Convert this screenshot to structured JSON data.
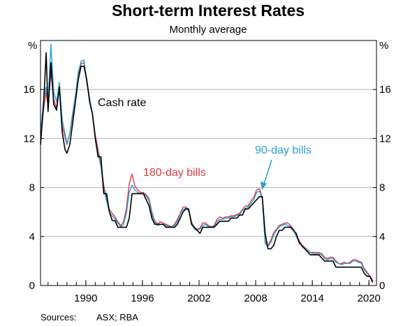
{
  "chart_data": {
    "type": "line",
    "title": "Short-term Interest Rates",
    "subtitle": "Monthly average",
    "y_unit": "%",
    "ylim": [
      0,
      20
    ],
    "xlim": [
      1985.2,
      2020.8
    ],
    "y_ticks": [
      0,
      4,
      8,
      12,
      16
    ],
    "x_ticks": [
      1990,
      1996,
      2002,
      2008,
      2014,
      2020
    ],
    "grid": "horizontal",
    "annotations": {
      "cash": "Cash rate",
      "bills180": "180-day bills",
      "bills90": "90-day bills"
    },
    "source_label": "Sources:",
    "source_text": "ASX; RBA",
    "series": [
      {
        "key": "bills180",
        "color": "#e03a3e",
        "x": [
          1985.2,
          1985.5,
          1985.8,
          1986.0,
          1986.3,
          1986.6,
          1986.9,
          1987.2,
          1987.5,
          1987.8,
          1988.0,
          1988.3,
          1988.6,
          1988.9,
          1989.2,
          1989.5,
          1989.8,
          1990.1,
          1990.4,
          1990.7,
          1991.0,
          1991.3,
          1991.6,
          1991.9,
          1992.2,
          1992.5,
          1992.8,
          1993.1,
          1993.4,
          1993.7,
          1994.0,
          1994.3,
          1994.6,
          1994.9,
          1995.2,
          1995.5,
          1995.8,
          1996.1,
          1996.4,
          1996.7,
          1997.0,
          1997.3,
          1997.6,
          1997.9,
          1998.2,
          1998.5,
          1998.8,
          1999.1,
          1999.4,
          1999.7,
          2000.0,
          2000.3,
          2000.6,
          2000.9,
          2001.2,
          2001.5,
          2001.8,
          2002.1,
          2002.4,
          2002.7,
          2003.0,
          2003.3,
          2003.6,
          2003.9,
          2004.2,
          2004.5,
          2004.8,
          2005.1,
          2005.4,
          2005.7,
          2006.0,
          2006.3,
          2006.6,
          2006.9,
          2007.2,
          2007.5,
          2007.8,
          2008.1,
          2008.4,
          2008.7,
          2009.0,
          2009.3,
          2009.6,
          2009.9,
          2010.2,
          2010.5,
          2010.8,
          2011.1,
          2011.4,
          2011.7,
          2012.0,
          2012.3,
          2012.6,
          2012.9,
          2013.2,
          2013.5,
          2013.8,
          2014.1,
          2014.4,
          2014.7,
          2015.0,
          2015.3,
          2015.6,
          2015.9,
          2016.2,
          2016.5,
          2016.8,
          2017.1,
          2017.4,
          2017.7,
          2018.0,
          2018.3,
          2018.6,
          2018.9,
          2019.2,
          2019.5,
          2019.8,
          2020.1,
          2020.4
        ],
        "values": [
          12.0,
          14.3,
          15.8,
          14.6,
          17.4,
          15.2,
          14.5,
          16.4,
          13.0,
          12.1,
          11.5,
          12.4,
          14.0,
          15.5,
          17.2,
          18.1,
          18.2,
          16.6,
          15.2,
          14.1,
          12.3,
          11.1,
          9.9,
          8.2,
          7.1,
          6.2,
          5.9,
          5.6,
          5.2,
          4.9,
          5.2,
          6.3,
          8.3,
          9.1,
          8.1,
          7.8,
          7.6,
          7.6,
          7.4,
          7.1,
          6.0,
          5.3,
          5.0,
          5.2,
          5.1,
          5.0,
          4.9,
          4.8,
          5.0,
          5.4,
          5.9,
          6.4,
          6.4,
          6.2,
          5.2,
          4.7,
          4.6,
          4.7,
          5.1,
          5.1,
          4.9,
          4.8,
          4.9,
          5.4,
          5.6,
          5.5,
          5.6,
          5.6,
          5.7,
          5.7,
          5.8,
          5.9,
          6.2,
          6.5,
          6.5,
          6.9,
          7.2,
          7.8,
          7.9,
          7.2,
          3.6,
          3.3,
          3.7,
          4.3,
          4.6,
          4.9,
          5.0,
          5.1,
          5.1,
          4.9,
          4.6,
          4.1,
          3.7,
          3.3,
          3.1,
          2.9,
          2.7,
          2.7,
          2.7,
          2.7,
          2.6,
          2.3,
          2.2,
          2.3,
          2.3,
          2.0,
          1.8,
          1.8,
          1.9,
          1.8,
          1.9,
          2.1,
          2.1,
          2.0,
          1.9,
          1.4,
          1.1,
          0.8,
          0.4
        ]
      },
      {
        "key": "bills90",
        "color": "#2a9fd6",
        "x": [
          1985.2,
          1985.5,
          1985.8,
          1986.0,
          1986.3,
          1986.6,
          1986.9,
          1987.2,
          1987.5,
          1987.8,
          1988.0,
          1988.3,
          1988.6,
          1988.9,
          1989.2,
          1989.5,
          1989.8,
          1990.1,
          1990.4,
          1990.7,
          1991.0,
          1991.3,
          1991.6,
          1991.9,
          1992.2,
          1992.5,
          1992.8,
          1993.1,
          1993.4,
          1993.7,
          1994.0,
          1994.3,
          1994.6,
          1994.9,
          1995.2,
          1995.5,
          1995.8,
          1996.1,
          1996.4,
          1996.7,
          1997.0,
          1997.3,
          1997.6,
          1997.9,
          1998.2,
          1998.5,
          1998.8,
          1999.1,
          1999.4,
          1999.7,
          2000.0,
          2000.3,
          2000.6,
          2000.9,
          2001.2,
          2001.5,
          2001.8,
          2002.1,
          2002.4,
          2002.7,
          2003.0,
          2003.3,
          2003.6,
          2003.9,
          2004.2,
          2004.5,
          2004.8,
          2005.1,
          2005.4,
          2005.7,
          2006.0,
          2006.3,
          2006.6,
          2006.9,
          2007.2,
          2007.5,
          2007.8,
          2008.1,
          2008.4,
          2008.7,
          2009.0,
          2009.3,
          2009.6,
          2009.9,
          2010.2,
          2010.5,
          2010.8,
          2011.1,
          2011.4,
          2011.7,
          2012.0,
          2012.3,
          2012.6,
          2012.9,
          2013.2,
          2013.5,
          2013.8,
          2014.1,
          2014.4,
          2014.7,
          2015.0,
          2015.3,
          2015.6,
          2015.9,
          2016.2,
          2016.5,
          2016.8,
          2017.1,
          2017.4,
          2017.7,
          2018.0,
          2018.3,
          2018.6,
          2018.9,
          2019.2,
          2019.5,
          2019.8,
          2020.1,
          2020.4
        ],
        "values": [
          12.5,
          15.0,
          16.2,
          15.0,
          19.7,
          15.8,
          15.0,
          16.6,
          13.5,
          12.4,
          11.6,
          12.4,
          13.8,
          15.5,
          17.4,
          18.3,
          18.4,
          16.8,
          15.3,
          14.0,
          12.0,
          10.8,
          9.7,
          7.9,
          6.9,
          6.0,
          5.7,
          5.4,
          5.1,
          4.8,
          5.0,
          5.9,
          7.6,
          8.2,
          7.8,
          7.6,
          7.5,
          7.5,
          7.3,
          6.9,
          5.8,
          5.2,
          4.9,
          5.0,
          5.0,
          4.9,
          4.8,
          4.8,
          4.9,
          5.2,
          5.8,
          6.2,
          6.3,
          6.1,
          5.0,
          4.6,
          4.5,
          4.6,
          4.9,
          5.0,
          4.8,
          4.8,
          4.8,
          5.2,
          5.4,
          5.4,
          5.5,
          5.5,
          5.6,
          5.6,
          5.7,
          5.8,
          6.1,
          6.3,
          6.4,
          6.7,
          7.0,
          7.6,
          7.7,
          7.1,
          3.4,
          3.2,
          3.5,
          4.1,
          4.5,
          4.8,
          4.9,
          5.0,
          4.9,
          4.8,
          4.5,
          4.0,
          3.6,
          3.2,
          3.0,
          2.9,
          2.7,
          2.6,
          2.6,
          2.6,
          2.5,
          2.2,
          2.1,
          2.2,
          2.2,
          1.9,
          1.8,
          1.7,
          1.8,
          1.8,
          1.8,
          2.0,
          2.0,
          1.9,
          1.8,
          1.3,
          1.0,
          0.7,
          0.3
        ]
      },
      {
        "key": "cash",
        "color": "#000000",
        "x": [
          1985.2,
          1985.5,
          1985.8,
          1986.0,
          1986.3,
          1986.6,
          1986.9,
          1987.2,
          1987.5,
          1987.8,
          1988.0,
          1988.3,
          1988.6,
          1988.9,
          1989.2,
          1989.5,
          1989.8,
          1990.1,
          1990.4,
          1990.7,
          1991.0,
          1991.3,
          1991.6,
          1991.9,
          1992.2,
          1992.5,
          1992.8,
          1993.1,
          1993.4,
          1993.7,
          1994.0,
          1994.3,
          1994.6,
          1994.9,
          1995.2,
          1995.5,
          1995.8,
          1996.1,
          1996.4,
          1996.7,
          1997.0,
          1997.3,
          1997.6,
          1997.9,
          1998.2,
          1998.5,
          1998.8,
          1999.1,
          1999.4,
          1999.7,
          2000.0,
          2000.3,
          2000.6,
          2000.9,
          2001.2,
          2001.5,
          2001.8,
          2002.1,
          2002.4,
          2002.7,
          2003.0,
          2003.3,
          2003.6,
          2003.9,
          2004.2,
          2004.5,
          2004.8,
          2005.1,
          2005.4,
          2005.7,
          2006.0,
          2006.3,
          2006.6,
          2006.9,
          2007.2,
          2007.5,
          2007.8,
          2008.1,
          2008.4,
          2008.7,
          2009.0,
          2009.3,
          2009.6,
          2009.9,
          2010.2,
          2010.5,
          2010.8,
          2011.1,
          2011.4,
          2011.7,
          2012.0,
          2012.3,
          2012.6,
          2012.9,
          2013.2,
          2013.5,
          2013.8,
          2014.1,
          2014.4,
          2014.7,
          2015.0,
          2015.3,
          2015.6,
          2015.9,
          2016.2,
          2016.5,
          2016.8,
          2017.1,
          2017.4,
          2017.7,
          2018.0,
          2018.3,
          2018.6,
          2018.9,
          2019.2,
          2019.5,
          2019.8,
          2020.1,
          2020.4
        ],
        "values": [
          11.5,
          14.5,
          19.0,
          14.2,
          18.2,
          14.8,
          14.3,
          16.2,
          12.5,
          11.1,
          10.8,
          11.5,
          13.2,
          15.0,
          16.8,
          17.9,
          17.9,
          16.8,
          15.0,
          14.0,
          12.0,
          10.5,
          10.5,
          7.5,
          7.5,
          6.0,
          5.3,
          5.3,
          4.75,
          4.75,
          4.75,
          4.75,
          5.5,
          7.5,
          7.5,
          7.5,
          7.5,
          7.5,
          7.0,
          6.5,
          5.5,
          5.0,
          5.0,
          5.0,
          5.0,
          4.75,
          4.75,
          4.75,
          4.75,
          5.0,
          5.5,
          6.0,
          6.25,
          6.25,
          5.0,
          4.75,
          4.5,
          4.25,
          4.75,
          4.75,
          4.75,
          4.75,
          4.75,
          5.0,
          5.25,
          5.25,
          5.25,
          5.25,
          5.5,
          5.5,
          5.5,
          5.75,
          5.75,
          6.25,
          6.25,
          6.5,
          6.75,
          7.0,
          7.25,
          7.25,
          4.25,
          3.0,
          3.0,
          3.25,
          4.0,
          4.5,
          4.5,
          4.75,
          4.75,
          4.75,
          4.5,
          4.25,
          3.5,
          3.25,
          3.0,
          2.75,
          2.5,
          2.5,
          2.5,
          2.5,
          2.25,
          2.0,
          2.0,
          2.0,
          2.0,
          1.5,
          1.5,
          1.5,
          1.5,
          1.5,
          1.5,
          1.5,
          1.5,
          1.5,
          1.5,
          1.0,
          0.75,
          0.75,
          0.25
        ]
      }
    ]
  }
}
